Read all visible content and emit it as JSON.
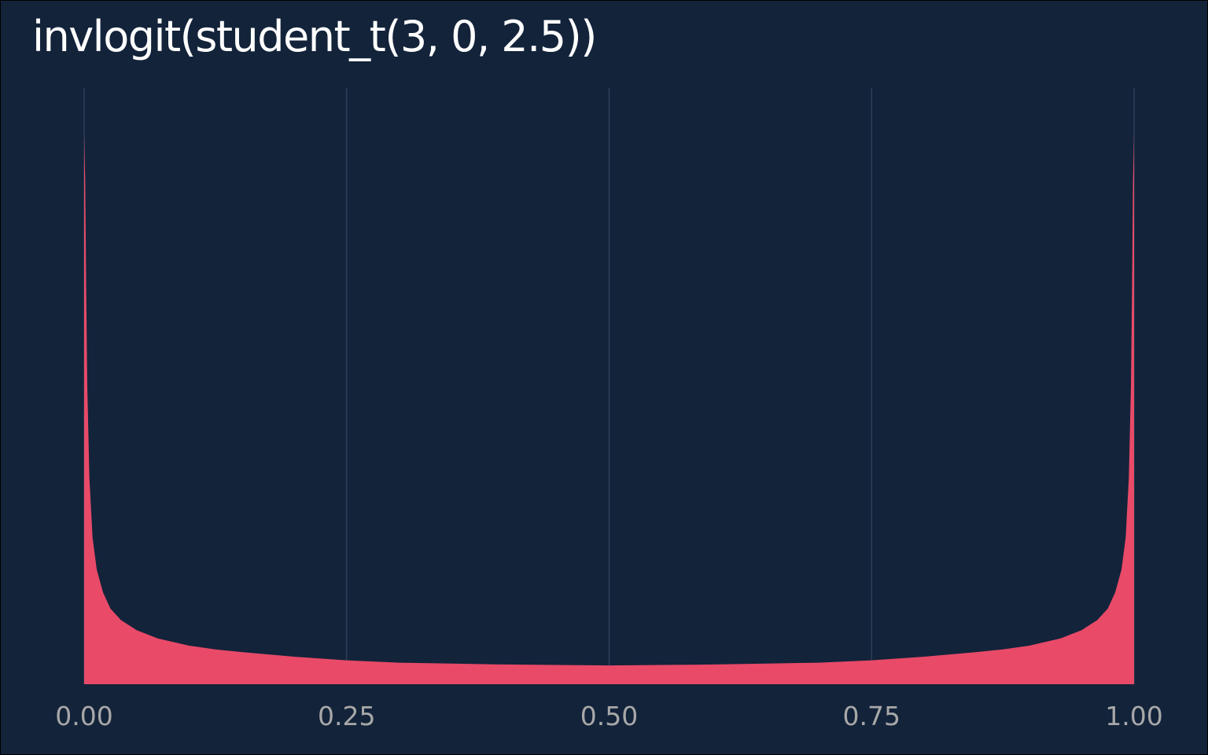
{
  "chart_data": {
    "type": "area",
    "title": "invlogit(student_t(3, 0, 2.5))",
    "xlabel": "",
    "ylabel": "",
    "xlim": [
      0,
      1
    ],
    "ylim": [
      0,
      13
    ],
    "grid": {
      "vertical": true,
      "horizontal": false
    },
    "legend": "none",
    "x_ticks": [
      {
        "value": 0.0,
        "label": "0.00"
      },
      {
        "value": 0.25,
        "label": "0.25"
      },
      {
        "value": 0.5,
        "label": "0.50"
      },
      {
        "value": 0.75,
        "label": "0.75"
      },
      {
        "value": 1.0,
        "label": "1.00"
      }
    ],
    "series": [
      {
        "color": "#E84A68",
        "points": [
          [
            0.0,
            12.0
          ],
          [
            0.001,
            11.0
          ],
          [
            0.002,
            8.5
          ],
          [
            0.003,
            6.5
          ],
          [
            0.005,
            4.5
          ],
          [
            0.008,
            3.2
          ],
          [
            0.012,
            2.5
          ],
          [
            0.018,
            2.0
          ],
          [
            0.025,
            1.65
          ],
          [
            0.035,
            1.4
          ],
          [
            0.05,
            1.18
          ],
          [
            0.07,
            1.0
          ],
          [
            0.1,
            0.84
          ],
          [
            0.125,
            0.76
          ],
          [
            0.15,
            0.7
          ],
          [
            0.2,
            0.6
          ],
          [
            0.25,
            0.52
          ],
          [
            0.3,
            0.47
          ],
          [
            0.35,
            0.45
          ],
          [
            0.4,
            0.43
          ],
          [
            0.45,
            0.42
          ],
          [
            0.5,
            0.41
          ],
          [
            0.55,
            0.42
          ],
          [
            0.6,
            0.43
          ],
          [
            0.65,
            0.45
          ],
          [
            0.7,
            0.47
          ],
          [
            0.75,
            0.52
          ],
          [
            0.8,
            0.6
          ],
          [
            0.85,
            0.7
          ],
          [
            0.875,
            0.76
          ],
          [
            0.9,
            0.84
          ],
          [
            0.93,
            1.0
          ],
          [
            0.95,
            1.18
          ],
          [
            0.965,
            1.4
          ],
          [
            0.975,
            1.65
          ],
          [
            0.982,
            2.0
          ],
          [
            0.988,
            2.5
          ],
          [
            0.992,
            3.2
          ],
          [
            0.995,
            4.5
          ],
          [
            0.997,
            6.5
          ],
          [
            0.998,
            8.5
          ],
          [
            0.999,
            11.0
          ],
          [
            1.0,
            12.0
          ]
        ]
      }
    ]
  }
}
